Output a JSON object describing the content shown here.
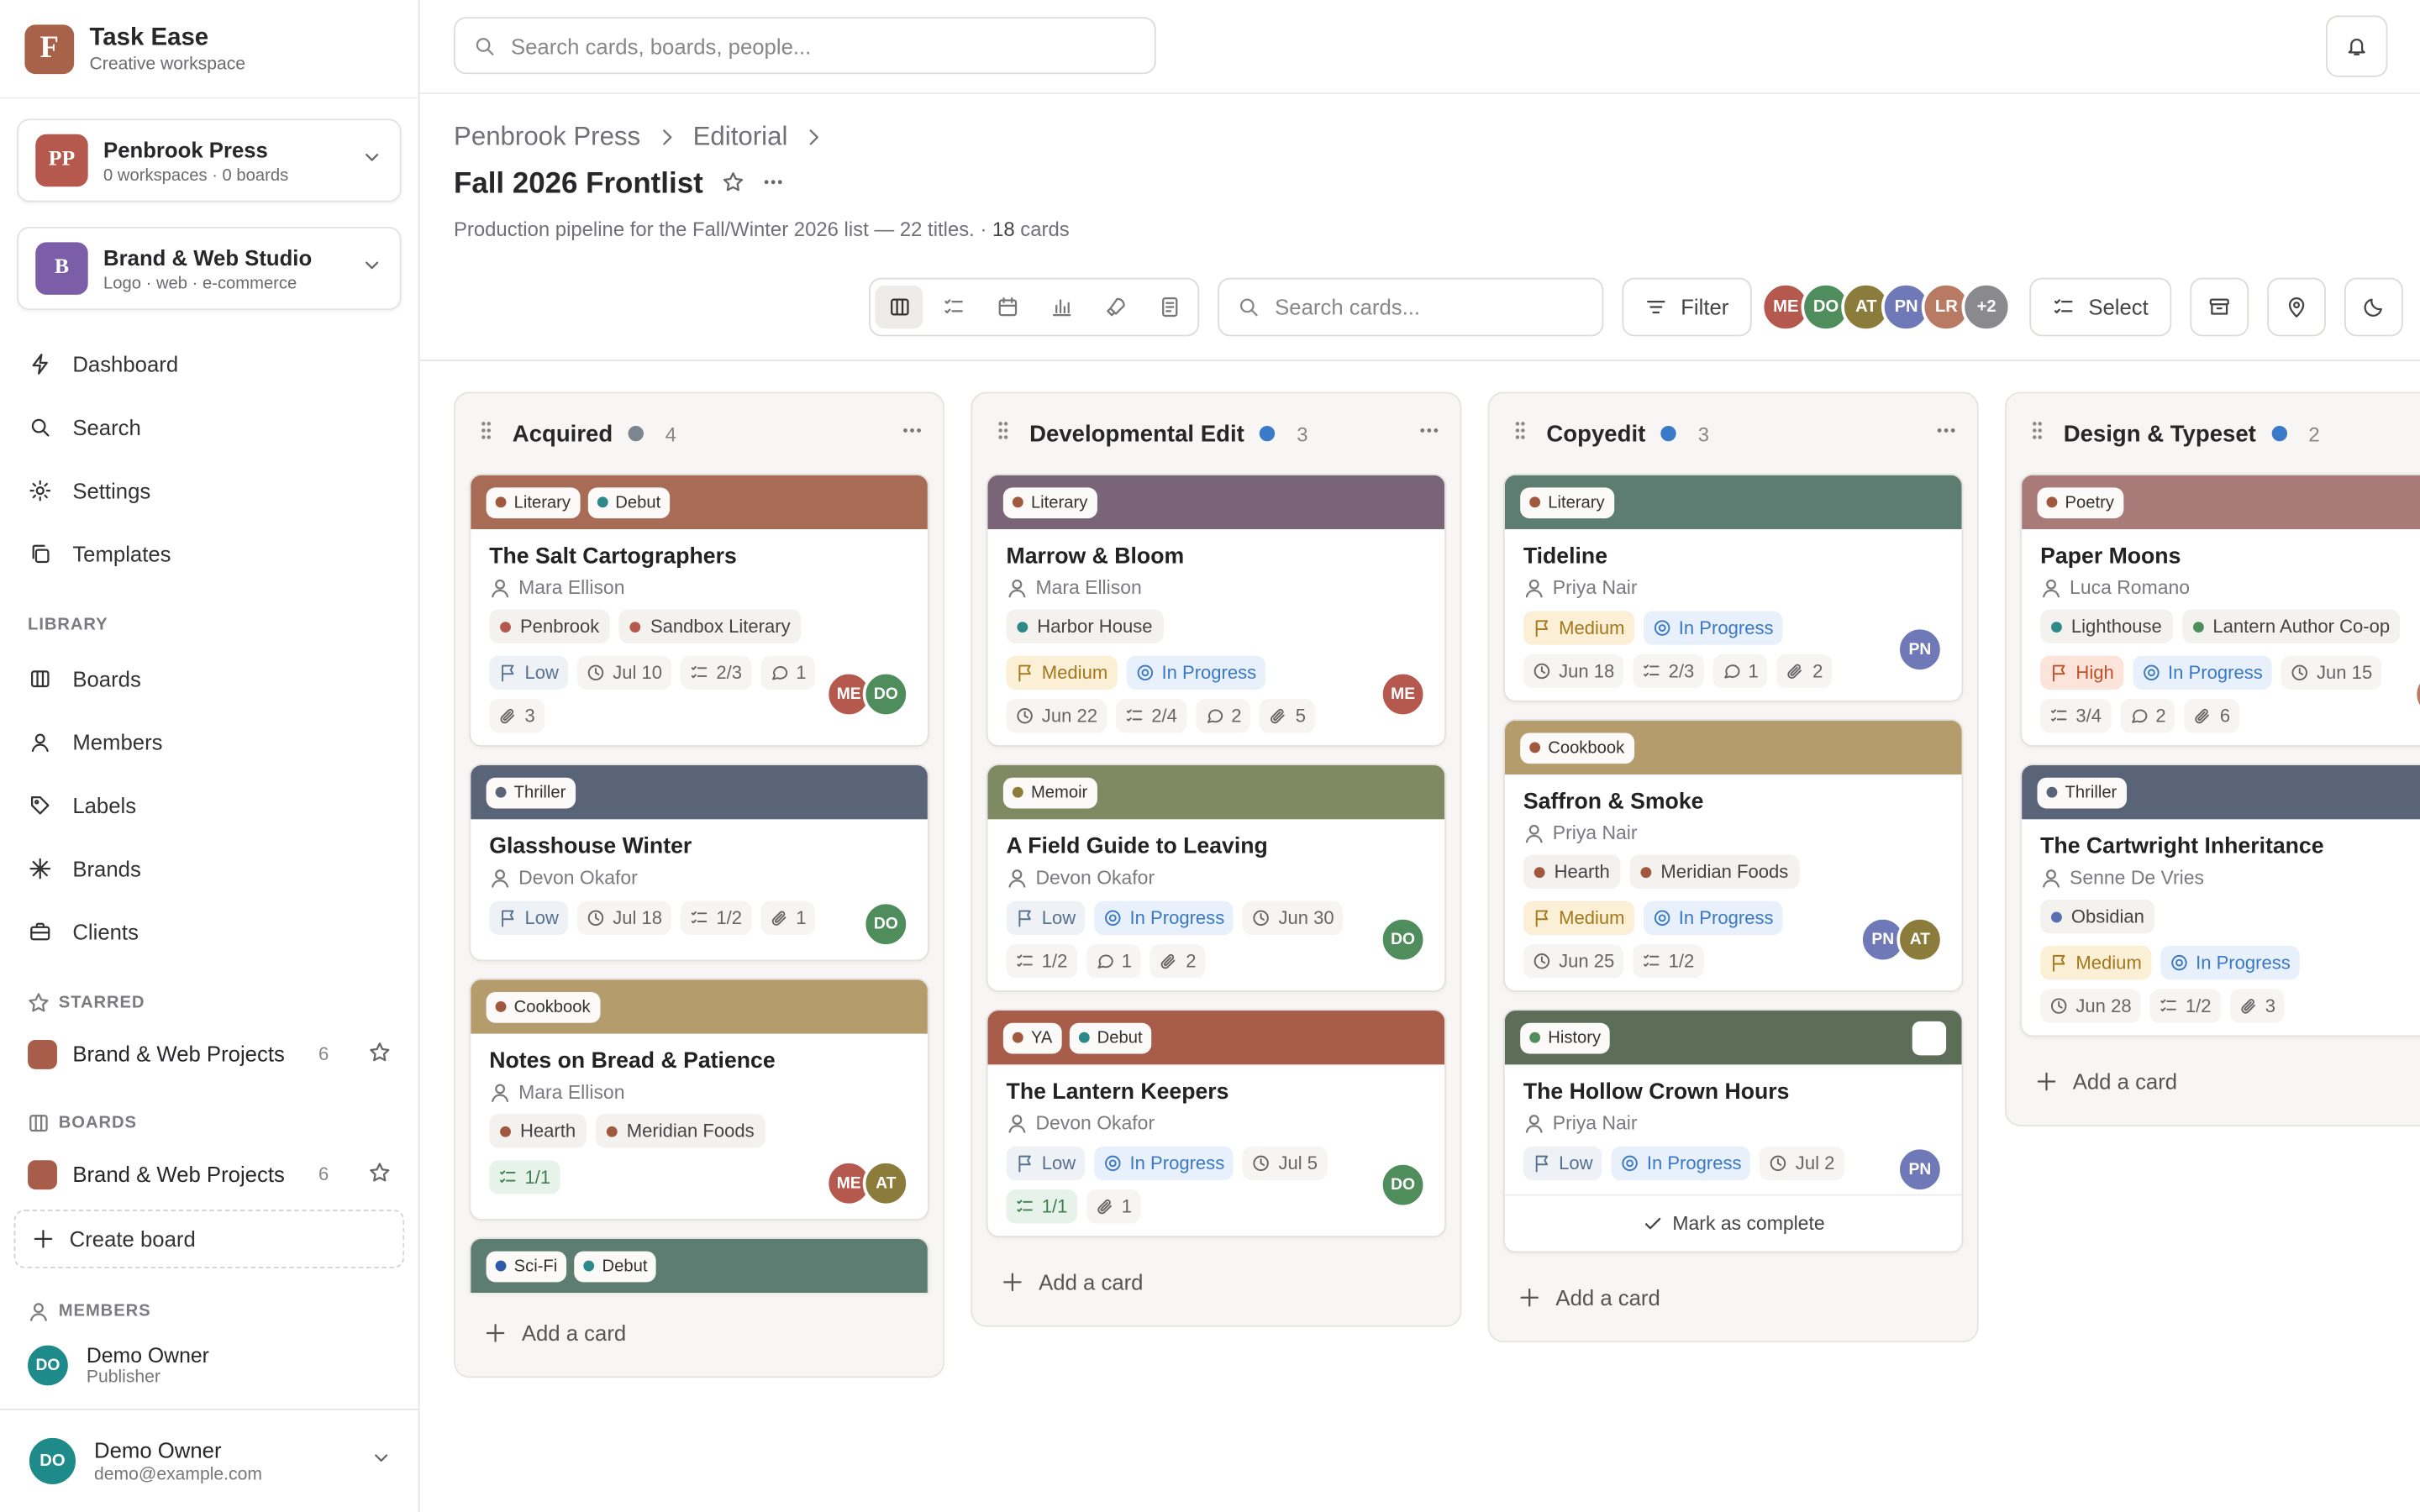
{
  "app": {
    "logo": "F",
    "name": "Task Ease",
    "subtitle": "Creative workspace"
  },
  "orgs": [
    {
      "initials": "PP",
      "name": "Penbrook Press",
      "meta": "0 workspaces · 0 boards",
      "color": "#b5584e"
    },
    {
      "initials": "B",
      "name": "Brand & Web Studio",
      "meta": "Logo · web · e-commerce",
      "color": "#7b5ea7"
    }
  ],
  "nav": [
    "Dashboard",
    "Search",
    "Settings",
    "Templates"
  ],
  "library": {
    "title": "LIBRARY",
    "items": [
      "Boards",
      "Members",
      "Labels",
      "Brands",
      "Clients"
    ]
  },
  "starred": {
    "title": "STARRED",
    "items": [
      {
        "name": "Brand & Web Projects",
        "count": 6,
        "color": "#a85c4a"
      }
    ]
  },
  "boards": {
    "title": "BOARDS",
    "items": [
      {
        "name": "Brand & Web Projects",
        "count": 6,
        "color": "#a85c4a"
      }
    ],
    "create": "Create board"
  },
  "members": {
    "title": "MEMBERS",
    "items": [
      {
        "initials": "DO",
        "name": "Demo Owner",
        "role": "Publisher"
      }
    ]
  },
  "user": {
    "initials": "DO",
    "name": "Demo Owner",
    "email": "demo@example.com"
  },
  "topbar": {
    "search_placeholder": "Search cards, boards, people..."
  },
  "breadcrumb": [
    "Penbrook Press",
    "Editorial"
  ],
  "board": {
    "title": "Fall 2026 Frontlist",
    "description": "Production pipeline for the Fall/Winter 2026 list — 22 titles.",
    "count": 18,
    "count_unit": "cards"
  },
  "toolbar": {
    "search_placeholder": "Search cards...",
    "filter": "Filter",
    "avatars": [
      "ME",
      "DO",
      "AT",
      "PN",
      "LR"
    ],
    "more": "+2",
    "select": "Select"
  },
  "avatar_colors": {
    "ME": "#b5584e",
    "DO": "#4f8d5c",
    "AT": "#8c7c3c",
    "PN": "#7079b8",
    "LR": "#b87a62"
  },
  "add_card": "Add a card",
  "columns": [
    {
      "name": "Acquired",
      "dot": "#7d8590",
      "count": 4,
      "cards": [
        {
          "color": "#a86b56",
          "labels": [
            {
              "name": "Literary",
              "color": "#a0583f"
            },
            {
              "name": "Debut",
              "color": "#2e8a8a"
            }
          ],
          "title": "The Salt Cartographers",
          "author": "Mara Ellison",
          "brands": [
            {
              "name": "Penbrook",
              "color": "#b5584e"
            },
            {
              "name": "Sandbox Literary",
              "color": "#b5584e"
            }
          ],
          "priority": "Low",
          "date": "Jul 10",
          "checklist": "2/3",
          "comments": 1,
          "attachments": 3,
          "avatars": [
            "ME",
            "DO"
          ]
        },
        {
          "color": "#5a6478",
          "labels": [
            {
              "name": "Thriller",
              "color": "#5a6478"
            }
          ],
          "title": "Glasshouse Winter",
          "author": "Devon Okafor",
          "priority": "Low",
          "date": "Jul 18",
          "checklist": "1/2",
          "attachments": 1,
          "avatars": [
            "DO"
          ]
        },
        {
          "color": "#b59c6c",
          "labels": [
            {
              "name": "Cookbook",
              "color": "#a0583f"
            }
          ],
          "title": "Notes on Bread & Patience",
          "author": "Mara Ellison",
          "brands": [
            {
              "name": "Hearth",
              "color": "#a0583f"
            },
            {
              "name": "Meridian Foods",
              "color": "#a0583f"
            }
          ],
          "checklist_done": "1/1",
          "avatars": [
            "ME",
            "AT"
          ]
        },
        {
          "color": "#5e7d72",
          "labels": [
            {
              "name": "Sci-Fi",
              "color": "#2e5aa8"
            },
            {
              "name": "Debut",
              "color": "#2e8a8a"
            }
          ]
        }
      ]
    },
    {
      "name": "Developmental Edit",
      "dot": "#3a7ac8",
      "count": 3,
      "cards": [
        {
          "color": "#7a6478",
          "labels": [
            {
              "name": "Literary",
              "color": "#a0583f"
            }
          ],
          "title": "Marrow & Bloom",
          "author": "Mara Ellison",
          "brands": [
            {
              "name": "Harbor House",
              "color": "#2e8a8a"
            }
          ],
          "priority": "Medium",
          "status": "In Progress",
          "date": "Jun 22",
          "checklist": "2/4",
          "comments": 2,
          "attachments": 5,
          "avatars": [
            "ME"
          ]
        },
        {
          "color": "#7f8a62",
          "labels": [
            {
              "name": "Memoir",
              "color": "#8c7c3c"
            }
          ],
          "title": "A Field Guide to Leaving",
          "author": "Devon Okafor",
          "priority": "Low",
          "status": "In Progress",
          "date": "Jun 30",
          "checklist": "1/2",
          "comments": 1,
          "attachments": 2,
          "avatars": [
            "DO"
          ]
        },
        {
          "color": "#a85c4a",
          "labels": [
            {
              "name": "YA",
              "color": "#a0583f"
            },
            {
              "name": "Debut",
              "color": "#2e8a8a"
            }
          ],
          "title": "The Lantern Keepers",
          "author": "Devon Okafor",
          "priority": "Low",
          "status": "In Progress",
          "date": "Jul 5",
          "checklist_done": "1/1",
          "attachments": 1,
          "avatars": [
            "DO"
          ]
        }
      ]
    },
    {
      "name": "Copyedit",
      "dot": "#3a7ac8",
      "count": 3,
      "cards": [
        {
          "color": "#5e7d72",
          "labels": [
            {
              "name": "Literary",
              "color": "#a0583f"
            }
          ],
          "title": "Tideline",
          "author": "Priya Nair",
          "priority": "Medium",
          "status": "In Progress",
          "date": "Jun 18",
          "checklist": "2/3",
          "comments": 1,
          "attachments": 2,
          "avatars": [
            "PN"
          ]
        },
        {
          "color": "#b59c6c",
          "labels": [
            {
              "name": "Cookbook",
              "color": "#a0583f"
            }
          ],
          "title": "Saffron & Smoke",
          "author": "Priya Nair",
          "brands": [
            {
              "name": "Hearth",
              "color": "#a0583f"
            },
            {
              "name": "Meridian Foods",
              "color": "#a0583f"
            }
          ],
          "priority": "Medium",
          "status": "In Progress",
          "date": "Jun 25",
          "checklist": "1/2",
          "avatars": [
            "PN",
            "AT"
          ]
        },
        {
          "color": "#5c6e58",
          "labels": [
            {
              "name": "History",
              "color": "#4f8d5c"
            }
          ],
          "title": "The Hollow Crown Hours",
          "author": "Priya Nair",
          "priority": "Low",
          "status": "In Progress",
          "date": "Jul 2",
          "avatars": [
            "PN"
          ],
          "hover_action": "Mark as complete"
        }
      ]
    },
    {
      "name": "Design & Typeset",
      "dot": "#3a7ac8",
      "count": 2,
      "cards": [
        {
          "color": "#a87a78",
          "labels": [
            {
              "name": "Poetry",
              "color": "#a0583f"
            }
          ],
          "title": "Paper Moons",
          "author": "Luca Romano",
          "brands": [
            {
              "name": "Lighthouse",
              "color": "#2e8a8a"
            },
            {
              "name": "Lantern Author Co-op",
              "color": "#4f8d5c"
            }
          ],
          "priority": "High",
          "status": "In Progress",
          "date": "Jun 15",
          "checklist": "3/4",
          "comments": 2,
          "attachments": 6,
          "avatars": [
            "LR"
          ]
        },
        {
          "color": "#5a6478",
          "labels": [
            {
              "name": "Thriller",
              "color": "#5a6478"
            }
          ],
          "title": "The Cartwright Inheritance",
          "author": "Senne De Vries",
          "brands": [
            {
              "name": "Obsidian",
              "color": "#5a6eb0"
            }
          ],
          "priority": "Medium",
          "status": "In Progress",
          "date": "Jun 28",
          "checklist": "1/2",
          "attachments": 3
        }
      ]
    }
  ]
}
